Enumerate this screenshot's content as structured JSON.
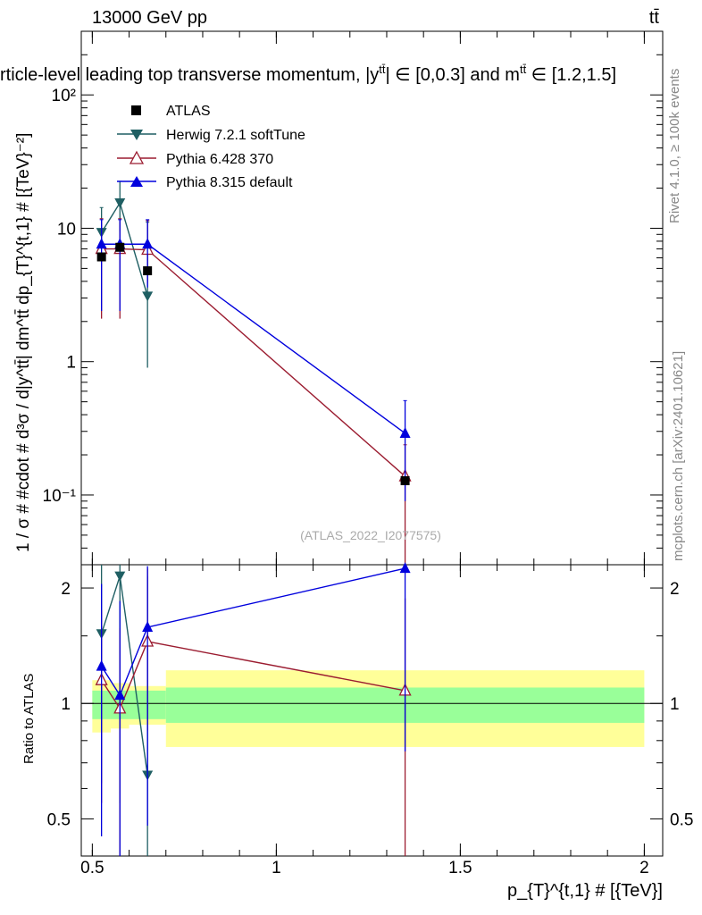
{
  "header": {
    "energy": "13000 GeV pp",
    "process": "tt̄",
    "title": "rticle-level leading top transverse momentum, |y",
    "title_tail": "| ∈ [0,0.3] and m",
    "title_end": " ∈ [1.2,1.5]",
    "title_sup": "tt̄"
  },
  "side_labels": {
    "rivet": "Rivet 4.1.0, ≥ 100k events",
    "mcplots": "mcplots.cern.ch [arXiv:2401.10621]"
  },
  "watermark": "(ATLAS_2022_I2077575)",
  "legend": [
    {
      "name": "ATLAS"
    },
    {
      "name": "Herwig 7.2.1 softTune"
    },
    {
      "name": "Pythia 6.428 370"
    },
    {
      "name": "Pythia 8.315 default"
    }
  ],
  "axes": {
    "ylabel_main": "1 / σ # #cdot # d³σ / d|y^tt̄| dm^tt̄ dp_{T}^{t,1} # [{TeV}⁻²]",
    "ylabel_ratio": "Ratio to ATLAS",
    "xlabel": "p_{T}^{t,1} # [{TeV}]",
    "main_ticks": [
      "10⁻¹",
      "1",
      "10",
      "10²"
    ],
    "x_ticks": [
      "0.5",
      "1",
      "1.5",
      "2"
    ],
    "ratio_ticks": [
      "0.5",
      "1",
      "2"
    ]
  },
  "colors": {
    "atlas": "#000000",
    "herwig": "#1f5f63",
    "pythia6": "#9b1c30",
    "pythia8": "#0000dd",
    "band_inner": "#99ff99",
    "band_outer": "#ffff99"
  },
  "chart_data": {
    "type": "scatter",
    "x_range": [
      0.47,
      2.05
    ],
    "y_range_main": [
      0.03,
      300
    ],
    "y_range_ratio": [
      0.4,
      2.3
    ],
    "y_scale": "log",
    "bins": [
      {
        "lo": 0.5,
        "hi": 0.55,
        "center": 0.525
      },
      {
        "lo": 0.55,
        "hi": 0.6,
        "center": 0.575
      },
      {
        "lo": 0.6,
        "hi": 0.7,
        "center": 0.65
      },
      {
        "lo": 0.7,
        "hi": 2.0,
        "center": 1.35
      }
    ],
    "atlas": {
      "x": [
        0.525,
        0.575,
        0.65,
        1.35
      ],
      "y": [
        6.1,
        7.2,
        4.8,
        0.128
      ]
    },
    "band": {
      "inner_lo": [
        0.91,
        0.91,
        0.91,
        0.89
      ],
      "inner_hi": [
        1.08,
        1.08,
        1.08,
        1.1
      ],
      "outer_lo": [
        0.84,
        0.86,
        0.88,
        0.77
      ],
      "outer_hi": [
        1.15,
        1.13,
        1.11,
        1.22
      ]
    },
    "series": [
      {
        "name": "Herwig 7.2.1 softTune",
        "marker": "triangle-down",
        "x": [
          0.525,
          0.575,
          0.65
        ],
        "y": [
          9.3,
          15.5,
          3.1
        ],
        "err_lo": [
          3.6,
          6.0,
          2.2
        ],
        "err_hi": [
          5.0,
          7.0,
          8.0
        ],
        "ratio": [
          1.52,
          2.15,
          0.65
        ],
        "ratio_err_lo": [
          0.9,
          1.6,
          0.4
        ],
        "ratio_err_hi": [
          0.8,
          0.9,
          1.5
        ]
      },
      {
        "name": "Pythia 6.428 370",
        "marker": "triangle-open",
        "x": [
          0.525,
          0.575,
          0.65,
          1.35
        ],
        "y": [
          7.0,
          7.0,
          6.9,
          0.138
        ],
        "err_lo": [
          4.9,
          4.9,
          3.0,
          0.137
        ],
        "err_hi": [
          4.8,
          4.8,
          4.5,
          0.1
        ],
        "ratio": [
          1.15,
          0.97,
          1.45,
          1.08
        ],
        "ratio_err_lo": [
          0.6,
          0.57,
          0.6,
          0.8
        ],
        "ratio_err_hi": [
          0.6,
          0.6,
          0.8,
          0.8
        ]
      },
      {
        "name": "Pythia 8.315 default",
        "marker": "triangle",
        "x": [
          0.525,
          0.575,
          0.65,
          1.35
        ],
        "y": [
          7.6,
          7.6,
          7.6,
          0.29
        ],
        "err_lo": [
          5.2,
          5.2,
          4.0,
          0.2
        ],
        "err_hi": [
          4.0,
          4.0,
          4.0,
          0.22
        ],
        "ratio": [
          1.25,
          1.05,
          1.58,
          2.25
        ],
        "ratio_err_lo": [
          0.8,
          0.7,
          1.1,
          1.5
        ],
        "ratio_err_hi": [
          0.8,
          0.8,
          0.7,
          0.9
        ]
      }
    ]
  }
}
